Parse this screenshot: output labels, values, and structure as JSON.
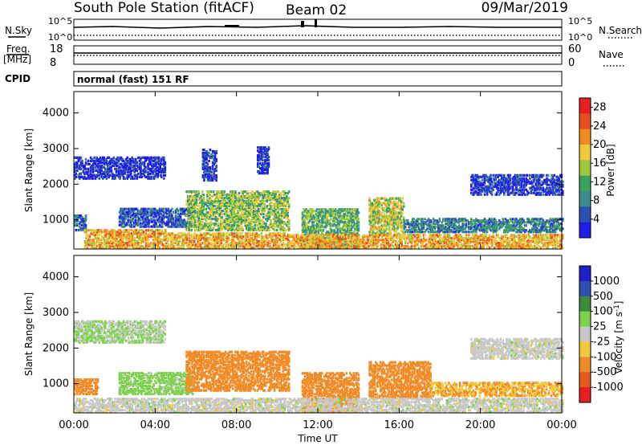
{
  "header": {
    "title": "South Pole Station (fitACF)",
    "beam": "Beam 02",
    "date": "09/Mar/2019"
  },
  "panels": {
    "nsky_label": "N.Sky",
    "nsky_hi": "10^5",
    "nsky_lo": "10^0",
    "nsearch_label": "N.Search",
    "nsearch_hi": "10^5",
    "nsearch_lo": "10^0",
    "freq_label": "Freq.",
    "freq_unit": "[MHz]",
    "freq_hi": "18",
    "freq_lo": "8",
    "nave_label": "Nave",
    "nave_hi": "60",
    "nave_lo": "0",
    "cpid_label": "CPID",
    "cpid_value": "normal (fast) 151 RF"
  },
  "colors": {
    "power": [
      "#1e1ee6",
      "#2e50b0",
      "#3a8c8c",
      "#3aa05a",
      "#a0c83c",
      "#f0c83c",
      "#f08c1e",
      "#e6501e",
      "#e61e1e"
    ],
    "velocity": [
      "#2020c8",
      "#3050b4",
      "#3c8c3c",
      "#7cd24c",
      "#c8c8c8",
      "#f0c83c",
      "#f08c28",
      "#e65a1e",
      "#e61e1e"
    ],
    "ground_scatter": "#a0a0a0"
  },
  "chart_data": [
    {
      "type": "heatmap",
      "name": "power",
      "ylabel": "Slant Range [km]",
      "yticks": [
        "1000",
        "2000",
        "3000",
        "4000"
      ],
      "ylim": [
        180,
        4600
      ],
      "xticks": [
        "00:00",
        "04:00",
        "08:00",
        "12:00",
        "16:00",
        "20:00",
        "00:00"
      ],
      "xlim_hours": [
        0,
        24
      ],
      "colorbar": {
        "label": "Power [dB]",
        "ticks": [
          "4",
          "8",
          "12",
          "16",
          "20",
          "24",
          "28"
        ],
        "range": [
          0,
          30
        ]
      },
      "regions": [
        {
          "t0": 0.0,
          "t1": 0.6,
          "r0": 700,
          "r1": 1150,
          "level": 6
        },
        {
          "t0": 0.0,
          "t1": 4.5,
          "r0": 2150,
          "r1": 2750,
          "level": 2
        },
        {
          "t0": 0.5,
          "t1": 4.5,
          "r0": 200,
          "r1": 700,
          "level": 20
        },
        {
          "t0": 2.2,
          "t1": 5.8,
          "r0": 800,
          "r1": 1300,
          "level": 5
        },
        {
          "t0": 5.5,
          "t1": 10.6,
          "r0": 700,
          "r1": 1800,
          "level": 14
        },
        {
          "t0": 6.3,
          "t1": 7.0,
          "r0": 2100,
          "r1": 3000,
          "level": 3
        },
        {
          "t0": 9.0,
          "t1": 9.6,
          "r0": 2300,
          "r1": 3050,
          "level": 3
        },
        {
          "t0": 4.5,
          "t1": 10.5,
          "r0": 200,
          "r1": 650,
          "level": 20
        },
        {
          "t0": 11.2,
          "t1": 14.0,
          "r0": 200,
          "r1": 1300,
          "level": 12
        },
        {
          "t0": 14.5,
          "t1": 16.2,
          "r0": 600,
          "r1": 1600,
          "level": 16
        },
        {
          "t0": 16.2,
          "t1": 24.0,
          "r0": 650,
          "r1": 1050,
          "level": 8
        },
        {
          "t0": 19.5,
          "t1": 24.0,
          "r0": 1700,
          "r1": 2250,
          "level": 3
        },
        {
          "t0": 10.5,
          "t1": 24.0,
          "r0": 200,
          "r1": 600,
          "level": 20
        }
      ]
    },
    {
      "type": "heatmap",
      "name": "velocity",
      "ylabel": "Slant Range [km]",
      "yticks": [
        "1000",
        "2000",
        "3000",
        "4000"
      ],
      "ylim": [
        180,
        4600
      ],
      "xticks": [
        "00:00",
        "04:00",
        "08:00",
        "12:00",
        "16:00",
        "20:00",
        "00:00"
      ],
      "xlim_hours": [
        0,
        24
      ],
      "xlabel": "Time UT",
      "colorbar": {
        "label": "Velocity [m s^-1]",
        "ticks": [
          "1000",
          "500",
          "100",
          "25",
          "-25",
          "-100",
          "-500",
          "-1000"
        ]
      },
      "regions": [
        {
          "t0": 0.0,
          "t1": 4.5,
          "r0": 2150,
          "r1": 2750,
          "level": 25
        },
        {
          "t0": 0.0,
          "t1": 1.2,
          "r0": 700,
          "r1": 1150,
          "level": -300
        },
        {
          "t0": 2.2,
          "t1": 5.8,
          "r0": 700,
          "r1": 1300,
          "level": 50
        },
        {
          "t0": 5.5,
          "t1": 10.6,
          "r0": 800,
          "r1": 1900,
          "level": -300
        },
        {
          "t0": 11.2,
          "t1": 14.0,
          "r0": 200,
          "r1": 1300,
          "level": -200
        },
        {
          "t0": 14.5,
          "t1": 17.5,
          "r0": 600,
          "r1": 1600,
          "level": -300
        },
        {
          "t0": 17.5,
          "t1": 24.0,
          "r0": 650,
          "r1": 1050,
          "level": -100
        },
        {
          "t0": 19.5,
          "t1": 24.0,
          "r0": 1700,
          "r1": 2250,
          "level": 0
        },
        {
          "t0": 0.0,
          "t1": 24.0,
          "r0": 200,
          "r1": 600,
          "level": 0
        }
      ]
    }
  ]
}
